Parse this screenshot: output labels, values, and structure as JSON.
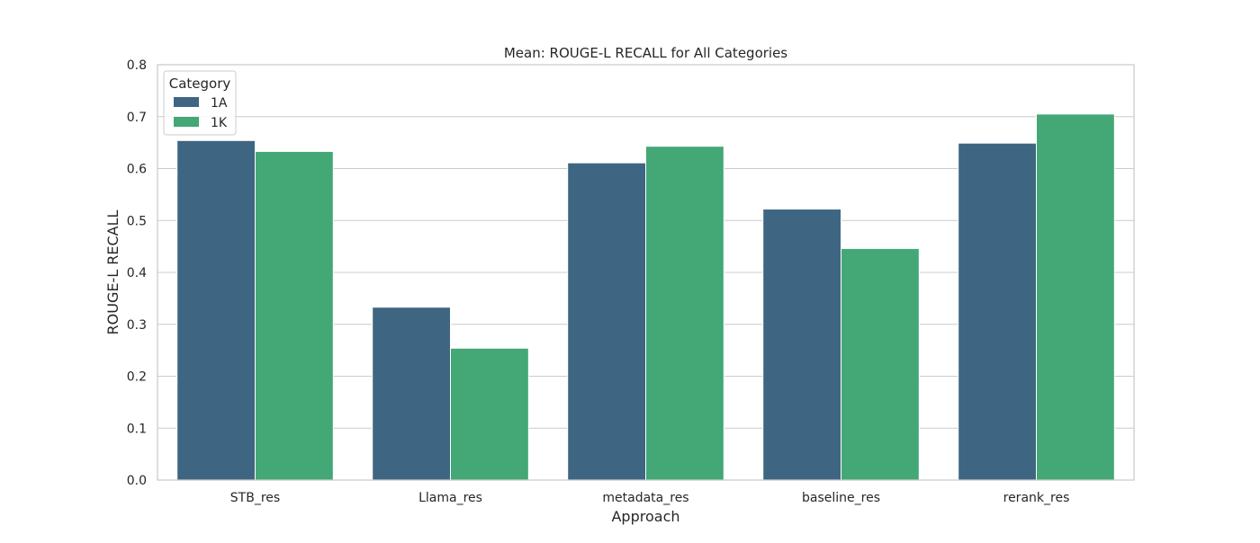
{
  "chart_data": {
    "type": "bar",
    "title": "Mean: ROUGE-L RECALL for All Categories",
    "xlabel": "Approach",
    "ylabel": "ROUGE-L RECALL",
    "categories": [
      "STB_res",
      "Llama_res",
      "metadata_res",
      "baseline_res",
      "rerank_res"
    ],
    "series": [
      {
        "name": "1A",
        "color": "#3e6682",
        "values": [
          0.654,
          0.333,
          0.611,
          0.522,
          0.649
        ]
      },
      {
        "name": "1K",
        "color": "#43a776",
        "values": [
          0.633,
          0.254,
          0.643,
          0.446,
          0.705
        ]
      }
    ],
    "ylim": [
      0,
      0.8
    ],
    "yticks": [
      "0.0",
      "0.1",
      "0.2",
      "0.3",
      "0.4",
      "0.5",
      "0.6",
      "0.7",
      "0.8"
    ],
    "legend": {
      "title": "Category",
      "position": "top-left"
    },
    "grid": "horizontal"
  }
}
